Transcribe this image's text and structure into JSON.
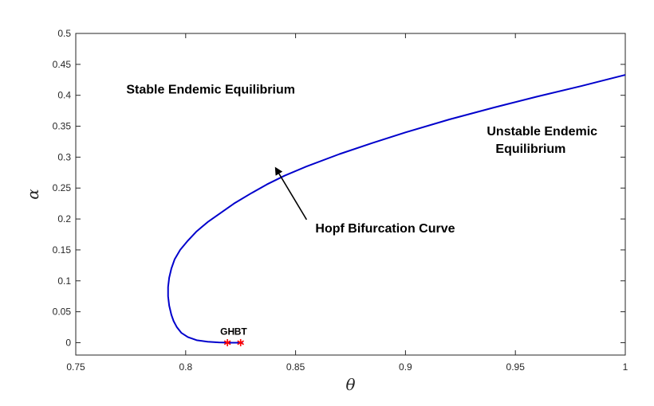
{
  "chart_data": {
    "type": "line",
    "title": "",
    "xlabel": "θ",
    "ylabel": "α",
    "xlim": [
      0.75,
      1.0
    ],
    "ylim": [
      -0.02,
      0.5
    ],
    "xticks": [
      0.75,
      0.8,
      0.85,
      0.9,
      0.95,
      1.0
    ],
    "yticks": [
      0,
      0.05,
      0.1,
      0.15,
      0.2,
      0.25,
      0.3,
      0.35,
      0.4,
      0.45,
      0.5
    ],
    "xtick_labels": [
      "0.75",
      "0.8",
      "0.85",
      "0.9",
      "0.95",
      "1"
    ],
    "ytick_labels": [
      "0",
      "0.05",
      "0.1",
      "0.15",
      "0.2",
      "0.25",
      "0.3",
      "0.35",
      "0.4",
      "0.45",
      "0.5"
    ],
    "grid": false,
    "series": [
      {
        "color": "#0000CC",
        "points": [
          [
            0.826,
            0.0
          ],
          [
            0.82,
            0.0
          ],
          [
            0.815,
            0.0005
          ],
          [
            0.81,
            0.0015
          ],
          [
            0.805,
            0.004
          ],
          [
            0.801,
            0.009
          ],
          [
            0.798,
            0.016
          ],
          [
            0.796,
            0.025
          ],
          [
            0.7945,
            0.035
          ],
          [
            0.7935,
            0.045
          ],
          [
            0.7925,
            0.06
          ],
          [
            0.792,
            0.075
          ],
          [
            0.792,
            0.09
          ],
          [
            0.7925,
            0.105
          ],
          [
            0.7935,
            0.12
          ],
          [
            0.795,
            0.135
          ],
          [
            0.7975,
            0.15
          ],
          [
            0.801,
            0.165
          ],
          [
            0.805,
            0.18
          ],
          [
            0.81,
            0.195
          ],
          [
            0.816,
            0.21
          ],
          [
            0.822,
            0.225
          ],
          [
            0.83,
            0.242
          ],
          [
            0.837,
            0.256
          ],
          [
            0.845,
            0.27
          ],
          [
            0.855,
            0.285
          ],
          [
            0.87,
            0.305
          ],
          [
            0.885,
            0.323
          ],
          [
            0.9,
            0.34
          ],
          [
            0.92,
            0.361
          ],
          [
            0.94,
            0.38
          ],
          [
            0.96,
            0.398
          ],
          [
            0.98,
            0.415
          ],
          [
            1.0,
            0.433
          ]
        ]
      }
    ],
    "special_points": [
      {
        "label": "GH",
        "x": 0.819,
        "y": 0.0,
        "color": "#FF0000"
      },
      {
        "label": "BT",
        "x": 0.825,
        "y": 0.0,
        "color": "#FF0000"
      }
    ],
    "annotations": [
      {
        "text": "Stable Endemic Equilibrium",
        "x": 0.773,
        "y": 0.403
      },
      {
        "text": "Unstable Endemic",
        "x": 0.937,
        "y": 0.335
      },
      {
        "text": "Equilibrium",
        "x": 0.941,
        "y": 0.307
      },
      {
        "text": "Hopf Bifurcation Curve",
        "x": 0.859,
        "y": 0.178
      }
    ],
    "arrow": {
      "from": [
        0.855,
        0.199
      ],
      "to": [
        0.841,
        0.282
      ],
      "label": "Hopf Bifurcation Curve"
    }
  }
}
